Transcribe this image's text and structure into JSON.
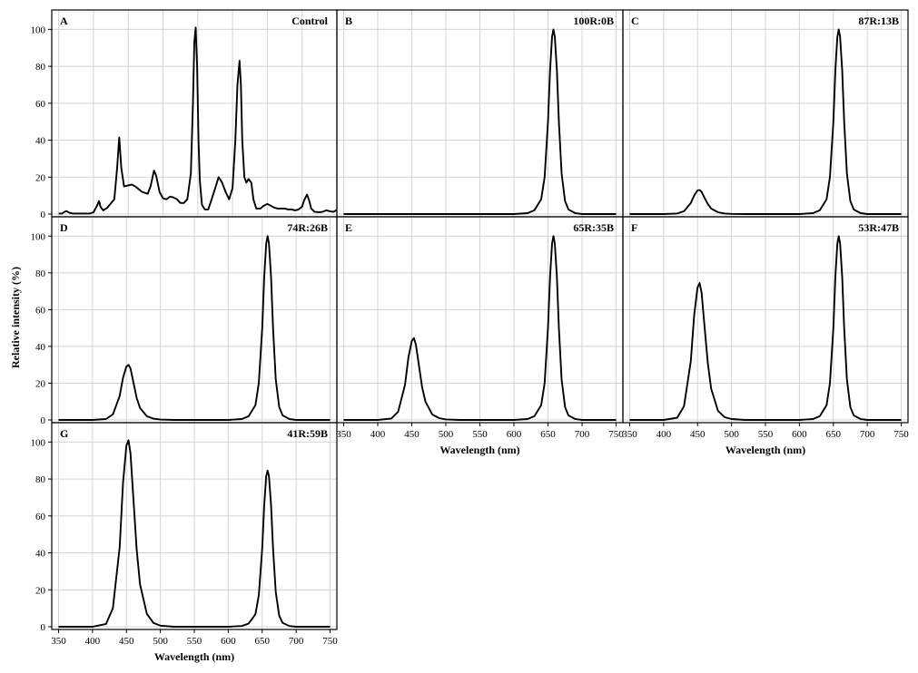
{
  "figure": {
    "ylabel": "Relative intensity (%)",
    "xlabel": "Wavelength (nm)"
  },
  "chart_data": [
    {
      "type": "line",
      "panel": "A",
      "title": "Control",
      "xlabel": "",
      "ylabel": "",
      "xlim": [
        340,
        750
      ],
      "ylim": [
        0,
        110
      ],
      "xticks": [
        350,
        400,
        450,
        500,
        550,
        600,
        650,
        700,
        750
      ],
      "yticks": [
        0,
        20,
        40,
        60,
        80,
        100
      ],
      "grid": true,
      "series": [
        {
          "x": [
            350,
            355,
            358,
            361,
            365,
            370,
            385,
            395,
            400,
            405,
            408,
            410,
            414,
            420,
            430,
            434,
            437,
            440,
            444,
            450,
            455,
            460,
            465,
            470,
            478,
            482,
            487,
            490,
            495,
            500,
            505,
            510,
            515,
            520,
            525,
            530,
            535,
            540,
            543,
            545,
            547,
            549,
            551,
            553,
            556,
            560,
            565,
            570,
            575,
            580,
            585,
            590,
            595,
            600,
            604,
            607,
            610,
            612,
            614,
            617,
            620,
            623,
            627,
            630,
            634,
            640,
            645,
            650,
            655,
            660,
            665,
            670,
            675,
            680,
            685,
            690,
            695,
            700,
            703,
            707,
            710,
            713,
            718,
            725,
            730,
            735,
            740,
            745,
            750
          ],
          "values": [
            0.3,
            0.3,
            1.2,
            1.6,
            0.8,
            0.3,
            0.3,
            0.3,
            1.0,
            4.5,
            7.0,
            4.0,
            2.0,
            3.5,
            8.0,
            25.0,
            41.5,
            25.0,
            15.0,
            15.5,
            16.0,
            15.0,
            13.5,
            12.0,
            11.0,
            15.0,
            23.5,
            21.0,
            12.0,
            8.5,
            8.0,
            9.5,
            9.0,
            8.0,
            6.0,
            6.0,
            8.0,
            22.0,
            60.0,
            93.0,
            101.0,
            80.0,
            40.0,
            18.0,
            5.0,
            2.5,
            2.5,
            8.0,
            14.0,
            20.0,
            17.0,
            12.0,
            8.0,
            14.0,
            40.0,
            70.0,
            83.0,
            70.0,
            40.0,
            20.0,
            17.0,
            19.0,
            17.0,
            8.0,
            3.0,
            3.0,
            4.5,
            5.5,
            4.5,
            3.5,
            3.0,
            3.0,
            3.0,
            2.5,
            2.5,
            2.0,
            2.5,
            4.0,
            7.5,
            10.5,
            7.5,
            3.0,
            1.2,
            1.0,
            1.3,
            2.0,
            1.5,
            1.2,
            2.2
          ]
        }
      ]
    },
    {
      "type": "line",
      "panel": "B",
      "title": "100R:0B",
      "xlim": [
        340,
        760
      ],
      "ylim": [
        0,
        110
      ],
      "xticks": [
        350,
        400,
        450,
        500,
        550,
        600,
        650,
        700,
        750
      ],
      "yticks": [
        0,
        20,
        40,
        60,
        80,
        100
      ],
      "grid": true,
      "series": [
        {
          "x": [
            350,
            600,
            620,
            630,
            640,
            645,
            650,
            653,
            656,
            658,
            660,
            663,
            666,
            670,
            675,
            680,
            690,
            700,
            720,
            750
          ],
          "values": [
            0,
            0,
            0.5,
            2.0,
            8.0,
            20.0,
            50.0,
            78.0,
            96.0,
            100.0,
            96.0,
            78.0,
            50.0,
            22.0,
            7.0,
            2.5,
            0.5,
            0,
            0,
            0
          ]
        }
      ]
    },
    {
      "type": "line",
      "panel": "C",
      "title": "87R:13B",
      "xlim": [
        340,
        760
      ],
      "ylim": [
        0,
        110
      ],
      "xticks": [
        350,
        400,
        450,
        500,
        550,
        600,
        650,
        700,
        750
      ],
      "yticks": [
        0,
        20,
        40,
        60,
        80,
        100
      ],
      "grid": true,
      "series": [
        {
          "x": [
            350,
            400,
            420,
            430,
            440,
            445,
            450,
            453,
            456,
            460,
            465,
            470,
            480,
            490,
            500,
            520,
            600,
            620,
            630,
            640,
            645,
            650,
            653,
            656,
            658,
            660,
            663,
            666,
            670,
            675,
            680,
            690,
            700,
            720,
            750
          ],
          "values": [
            0,
            0,
            0.3,
            1.5,
            6.0,
            10.0,
            12.8,
            13.0,
            12.0,
            9.0,
            5.5,
            3.0,
            1.0,
            0.3,
            0.1,
            0,
            0,
            0.5,
            2.0,
            8.0,
            20.0,
            50.0,
            78.0,
            96.0,
            100.0,
            96.0,
            78.0,
            50.0,
            22.0,
            7.0,
            2.5,
            0.5,
            0,
            0,
            0
          ]
        }
      ]
    },
    {
      "type": "line",
      "panel": "D",
      "title": "74R:26B",
      "xlim": [
        340,
        760
      ],
      "ylim": [
        0,
        110
      ],
      "xticks": [
        350,
        400,
        450,
        500,
        550,
        600,
        650,
        700,
        750
      ],
      "yticks": [
        0,
        20,
        40,
        60,
        80,
        100
      ],
      "grid": true,
      "series": [
        {
          "x": [
            350,
            400,
            420,
            430,
            440,
            445,
            450,
            453,
            456,
            460,
            465,
            470,
            480,
            490,
            500,
            520,
            600,
            620,
            630,
            640,
            645,
            650,
            653,
            656,
            658,
            660,
            663,
            666,
            670,
            675,
            680,
            690,
            700,
            720,
            750
          ],
          "values": [
            0,
            0,
            0.5,
            3.0,
            13.0,
            23.0,
            29.0,
            30.0,
            28.0,
            21.0,
            12.0,
            6.5,
            2.0,
            0.7,
            0.2,
            0,
            0,
            0.5,
            2.0,
            8.0,
            20.0,
            50.0,
            78.0,
            96.0,
            100.0,
            96.0,
            78.0,
            50.0,
            22.0,
            7.0,
            2.5,
            0.5,
            0,
            0,
            0
          ]
        }
      ]
    },
    {
      "type": "line",
      "panel": "E",
      "title": "65R:35B",
      "xlim": [
        340,
        760
      ],
      "ylim": [
        0,
        110
      ],
      "xticks": [
        350,
        400,
        450,
        500,
        550,
        600,
        650,
        700,
        750
      ],
      "yticks": [
        0,
        20,
        40,
        60,
        80,
        100
      ],
      "grid": true,
      "series": [
        {
          "x": [
            350,
            400,
            420,
            430,
            440,
            445,
            450,
            453,
            456,
            460,
            465,
            470,
            480,
            490,
            500,
            520,
            600,
            620,
            630,
            640,
            645,
            650,
            653,
            656,
            658,
            660,
            663,
            666,
            670,
            675,
            680,
            690,
            700,
            720,
            750
          ],
          "values": [
            0,
            0,
            0.8,
            4.5,
            19.0,
            34.0,
            43.0,
            44.5,
            41.0,
            31.0,
            18.0,
            10.0,
            3.0,
            1.0,
            0.3,
            0,
            0,
            0.5,
            2.0,
            8.0,
            20.0,
            50.0,
            78.0,
            96.0,
            100.0,
            96.0,
            78.0,
            50.0,
            22.0,
            7.0,
            2.5,
            0.5,
            0,
            0,
            0
          ]
        }
      ]
    },
    {
      "type": "line",
      "panel": "F",
      "title": "53R:47B",
      "xlim": [
        340,
        760
      ],
      "ylim": [
        0,
        110
      ],
      "xticks": [
        350,
        400,
        450,
        500,
        550,
        600,
        650,
        700,
        750
      ],
      "yticks": [
        0,
        20,
        40,
        60,
        80,
        100
      ],
      "grid": true,
      "series": [
        {
          "x": [
            350,
            400,
            420,
            430,
            440,
            445,
            450,
            453,
            456,
            460,
            465,
            470,
            480,
            490,
            500,
            520,
            600,
            620,
            630,
            640,
            645,
            650,
            653,
            656,
            658,
            660,
            663,
            666,
            670,
            675,
            680,
            690,
            700,
            720,
            750
          ],
          "values": [
            0,
            0,
            1.2,
            7.5,
            32.0,
            57.0,
            72.0,
            74.5,
            69.0,
            52.0,
            31.0,
            17.0,
            5.0,
            1.5,
            0.5,
            0,
            0,
            0.5,
            2.0,
            8.0,
            20.0,
            50.0,
            78.0,
            96.0,
            100.0,
            96.0,
            78.0,
            50.0,
            22.0,
            7.0,
            2.5,
            0.5,
            0,
            0,
            0
          ]
        }
      ]
    },
    {
      "type": "line",
      "panel": "G",
      "title": "41R:59B",
      "xlim": [
        340,
        760
      ],
      "ylim": [
        0,
        110
      ],
      "xticks": [
        350,
        400,
        450,
        500,
        550,
        600,
        650,
        700,
        750
      ],
      "yticks": [
        0,
        20,
        40,
        60,
        80,
        100
      ],
      "grid": true,
      "series": [
        {
          "x": [
            350,
            400,
            420,
            430,
            440,
            445,
            450,
            453,
            456,
            460,
            465,
            470,
            480,
            490,
            500,
            520,
            600,
            620,
            630,
            640,
            645,
            650,
            653,
            656,
            658,
            660,
            663,
            666,
            670,
            675,
            680,
            690,
            700,
            720,
            750
          ],
          "values": [
            0,
            0,
            1.5,
            10.0,
            43.0,
            78.0,
            98.0,
            101.0,
            94.0,
            71.0,
            42.0,
            23.0,
            7.0,
            2.0,
            0.6,
            0,
            0,
            0.4,
            1.7,
            6.8,
            17.0,
            42.5,
            66.0,
            81.5,
            84.5,
            81.5,
            66.0,
            42.5,
            18.7,
            6.0,
            2.1,
            0.4,
            0,
            0,
            0
          ]
        }
      ]
    }
  ]
}
